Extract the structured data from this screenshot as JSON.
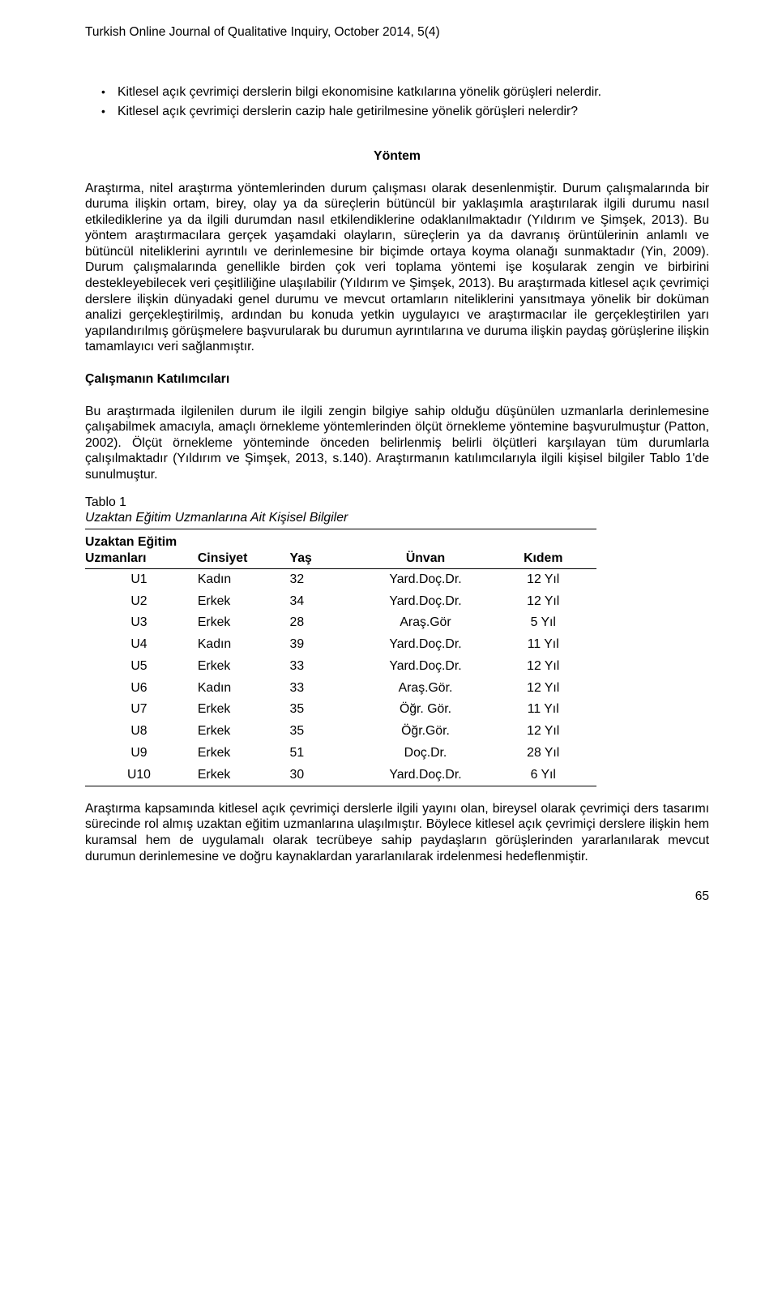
{
  "journal_header": "Turkish Online Journal of Qualitative Inquiry, October 2014, 5(4)",
  "bullets": [
    "Kitlesel açık çevrimiçi derslerin bilgi ekonomisine katkılarına yönelik görüşleri nelerdir.",
    "Kitlesel açık çevrimiçi derslerin cazip hale getirilmesine yönelik görüşleri nelerdir?"
  ],
  "section_method_heading": "Yöntem",
  "section_method_body": "Araştırma, nitel araştırma yöntemlerinden durum çalışması olarak desenlenmiştir. Durum çalışmalarında bir duruma ilişkin ortam, birey, olay ya da süreçlerin bütüncül bir yaklaşımla araştırılarak ilgili durumu nasıl etkilediklerine ya da ilgili durumdan nasıl etkilendiklerine odaklanılmaktadır (Yıldırım ve Şimşek, 2013). Bu yöntem araştırmacılara gerçek yaşamdaki olayların, süreçlerin ya da davranış örüntülerinin anlamlı ve bütüncül niteliklerini ayrıntılı ve derinlemesine bir biçimde ortaya koyma olanağı sunmaktadır (Yin, 2009). Durum çalışmalarında genellikle birden çok veri toplama yöntemi işe koşularak zengin ve birbirini destekleyebilecek veri çeşitliliğine ulaşılabilir (Yıldırım ve Şimşek, 2013). Bu araştırmada kitlesel açık çevrimiçi derslere ilişkin dünyadaki genel durumu ve mevcut ortamların niteliklerini yansıtmaya yönelik bir doküman analizi gerçekleştirilmiş, ardından bu konuda yetkin uygulayıcı ve araştırmacılar ile gerçekleştirilen yarı yapılandırılmış görüşmelere başvurularak bu durumun ayrıntılarına ve duruma ilişkin paydaş görüşlerine ilişkin tamamlayıcı veri sağlanmıştır.",
  "section_participants_heading": "Çalışmanın Katılımcıları",
  "section_participants_body": "Bu araştırmada ilgilenilen durum ile ilgili zengin bilgiye sahip olduğu düşünülen uzmanlarla derinlemesine çalışabilmek amacıyla, amaçlı örnekleme yöntemlerinden ölçüt örnekleme yöntemine başvurulmuştur (Patton, 2002). Ölçüt örnekleme yönteminde önceden belirlenmiş belirli ölçütleri karşılayan tüm durumlarla çalışılmaktadır (Yıldırım ve Şimşek, 2013, s.140). Araştırmanın katılımcılarıyla ilgili kişisel bilgiler Tablo 1'de sunulmuştur.",
  "table": {
    "label": "Tablo 1",
    "title": "Uzaktan Eğitim Uzmanlarına Ait Kişisel Bilgiler",
    "header_group_line1": "Uzaktan Eğitim",
    "header_group_line2": "Uzmanları",
    "columns": [
      "Cinsiyet",
      "Yaş",
      "Ünvan",
      "Kıdem"
    ],
    "rows": [
      [
        "U1",
        "Kadın",
        "32",
        "Yard.Doç.Dr.",
        "12 Yıl"
      ],
      [
        "U2",
        "Erkek",
        "34",
        "Yard.Doç.Dr.",
        "12 Yıl"
      ],
      [
        "U3",
        "Erkek",
        "28",
        "Araş.Gör",
        "5 Yıl"
      ],
      [
        "U4",
        "Kadın",
        "39",
        "Yard.Doç.Dr.",
        "11 Yıl"
      ],
      [
        "U5",
        "Erkek",
        "33",
        "Yard.Doç.Dr.",
        "12 Yıl"
      ],
      [
        "U6",
        "Kadın",
        "33",
        "Araş.Gör.",
        "12 Yıl"
      ],
      [
        "U7",
        "Erkek",
        "35",
        "Öğr. Gör.",
        "11 Yıl"
      ],
      [
        "U8",
        "Erkek",
        "35",
        "Öğr.Gör.",
        "12 Yıl"
      ],
      [
        "U9",
        "Erkek",
        "51",
        "Doç.Dr.",
        "28 Yıl"
      ],
      [
        "U10",
        "Erkek",
        "30",
        "Yard.Doç.Dr.",
        "6 Yıl"
      ]
    ]
  },
  "after_table_body": "Araştırma kapsamında kitlesel açık çevrimiçi derslerle ilgili yayını olan, bireysel olarak çevrimiçi ders tasarımı sürecinde rol almış uzaktan eğitim uzmanlarına ulaşılmıştır. Böylece kitlesel açık çevrimiçi derslere ilişkin hem kuramsal hem de uygulamalı olarak tecrübeye sahip paydaşların görüşlerinden yararlanılarak mevcut durumun derinlemesine ve doğru kaynaklardan yararlanılarak irdelenmesi hedeflenmiştir.",
  "page_number": "65"
}
